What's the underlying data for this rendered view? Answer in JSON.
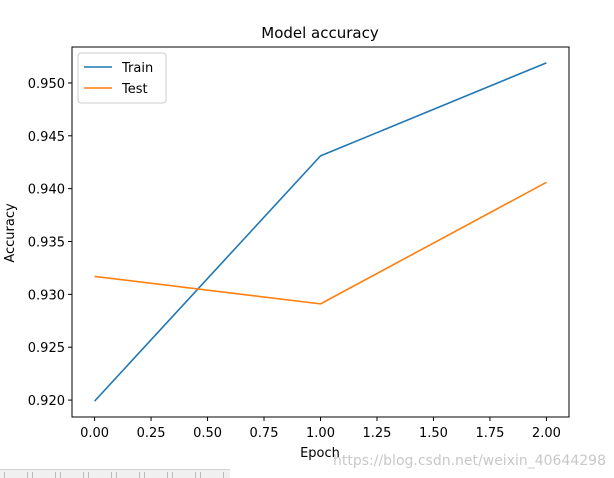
{
  "chart_data": {
    "type": "line",
    "title": "Model accuracy",
    "xlabel": "Epoch",
    "ylabel": "Accuracy",
    "x": [
      0,
      1,
      2
    ],
    "xlim": [
      -0.1,
      2.1
    ],
    "ylim": [
      0.9184,
      0.9534
    ],
    "xticks": [
      0.0,
      0.25,
      0.5,
      0.75,
      1.0,
      1.25,
      1.5,
      1.75,
      2.0
    ],
    "xtick_labels": [
      "0.00",
      "0.25",
      "0.50",
      "0.75",
      "1.00",
      "1.25",
      "1.50",
      "1.75",
      "2.00"
    ],
    "yticks": [
      0.92,
      0.925,
      0.93,
      0.935,
      0.94,
      0.945,
      0.95
    ],
    "ytick_labels": [
      "0.920",
      "0.925",
      "0.930",
      "0.935",
      "0.940",
      "0.945",
      "0.950"
    ],
    "grid": false,
    "legend_position": "top-left",
    "series": [
      {
        "name": "Train",
        "color": "#1f77b4",
        "values": [
          0.9199,
          0.9431,
          0.9519
        ]
      },
      {
        "name": "Test",
        "color": "#ff7f0e",
        "values": [
          0.9317,
          0.9291,
          0.9406
        ]
      }
    ]
  },
  "watermark": "https://blog.csdn.net/weixin_40644298"
}
